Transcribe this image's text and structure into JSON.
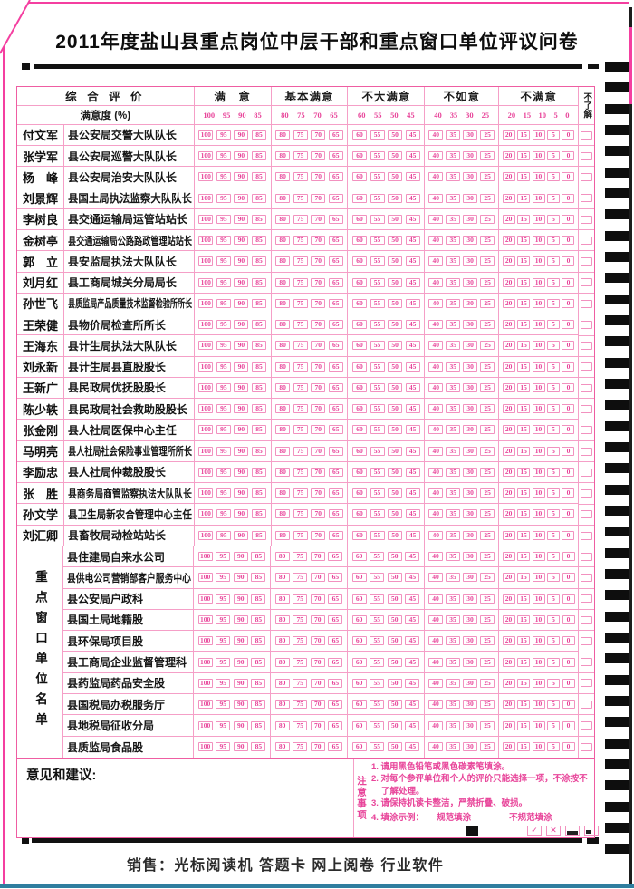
{
  "page": {
    "title": "2011年度盐山县重点岗位中层干部和重点窗口单位评议问卷",
    "footer": "销售：光标阅读机 答题卡 网上阅卷 行业软件"
  },
  "colors": {
    "pink_accent": "#e8459a",
    "pink_border": "#f59fc7",
    "frame_magenta": "#f43fa0",
    "mark_black": "#0e0e0e"
  },
  "omr": {
    "right_marks_count": 38
  },
  "table": {
    "header": {
      "eval_label": "综 合 评 价",
      "degree_label": "满意度 (%)",
      "unknown_label": "不了解",
      "groups": [
        {
          "label": "满　意",
          "values": [
            "100",
            "95",
            "90",
            "85"
          ]
        },
        {
          "label": "基本满意",
          "values": [
            "80",
            "75",
            "70",
            "65"
          ]
        },
        {
          "label": "不大满意",
          "values": [
            "60",
            "55",
            "50",
            "45"
          ]
        },
        {
          "label": "不如意",
          "values": [
            "40",
            "35",
            "30",
            "25"
          ]
        },
        {
          "label": "不满意",
          "values": [
            "20",
            "15",
            "10",
            "5",
            "0"
          ]
        }
      ]
    },
    "cadre_rows": [
      {
        "name": "付文军",
        "position": "县公安局交警大队队长"
      },
      {
        "name": "张学军",
        "position": "县公安局巡警大队队长"
      },
      {
        "name": "杨　峰",
        "position": "县公安局治安大队队长"
      },
      {
        "name": "刘景辉",
        "position": "县国土局执法监察大队队长"
      },
      {
        "name": "李树良",
        "position": "县交通运输局运管站站长"
      },
      {
        "name": "金树亭",
        "position": "县交通运输局公路路政管理站站长"
      },
      {
        "name": "郭　立",
        "position": "县安监局执法大队队长"
      },
      {
        "name": "刘月红",
        "position": "县工商局城关分局局长"
      },
      {
        "name": "孙世飞",
        "position": "县质监局产品质量技术监督检验所所长"
      },
      {
        "name": "王荣健",
        "position": "县物价局检查所所长"
      },
      {
        "name": "王海东",
        "position": "县计生局执法大队队长"
      },
      {
        "name": "刘永新",
        "position": "县计生局县直股股长"
      },
      {
        "name": "王新广",
        "position": "县民政局优抚股股长"
      },
      {
        "name": "陈少轶",
        "position": "县民政局社会救助股股长"
      },
      {
        "name": "张金刚",
        "position": "县人社局医保中心主任"
      },
      {
        "name": "马明亮",
        "position": "县人社局社会保险事业管理所所长"
      },
      {
        "name": "李励忠",
        "position": "县人社局仲裁股股长"
      },
      {
        "name": "张　胜",
        "position": "县商务局商管监察执法大队队长"
      },
      {
        "name": "孙文学",
        "position": "县卫生局新农合管理中心主任"
      },
      {
        "name": "刘汇卿",
        "position": "县畜牧局动检站站长"
      }
    ],
    "window_label": "重点窗口单位名单",
    "window_rows": [
      "县住建局自来水公司",
      "县供电公司营销部客户服务中心",
      "县公安局户政科",
      "县国土局地籍股",
      "县环保局项目股",
      "县工商局企业监督管理科",
      "县药监局药品安全股",
      "县国税局办税服务厅",
      "县地税局征收分局",
      "县质监局食品股"
    ]
  },
  "bottom": {
    "suggestion_label": "意见和建议:",
    "notice_label": "注意事项",
    "notes": [
      "1. 请用黑色铅笔或黑色碳素笔填涂。",
      "2. 对每个参评单位和个人的评价只能选择一项，不涂按不了解处理。",
      "3. 请保持机读卡整洁，严禁折叠、破损。",
      "4. 填涂示例："
    ],
    "example_good_label": "规范填涂",
    "example_bad_label": "不规范填涂",
    "icons": {
      "check": "✓",
      "cross": "✕"
    }
  }
}
